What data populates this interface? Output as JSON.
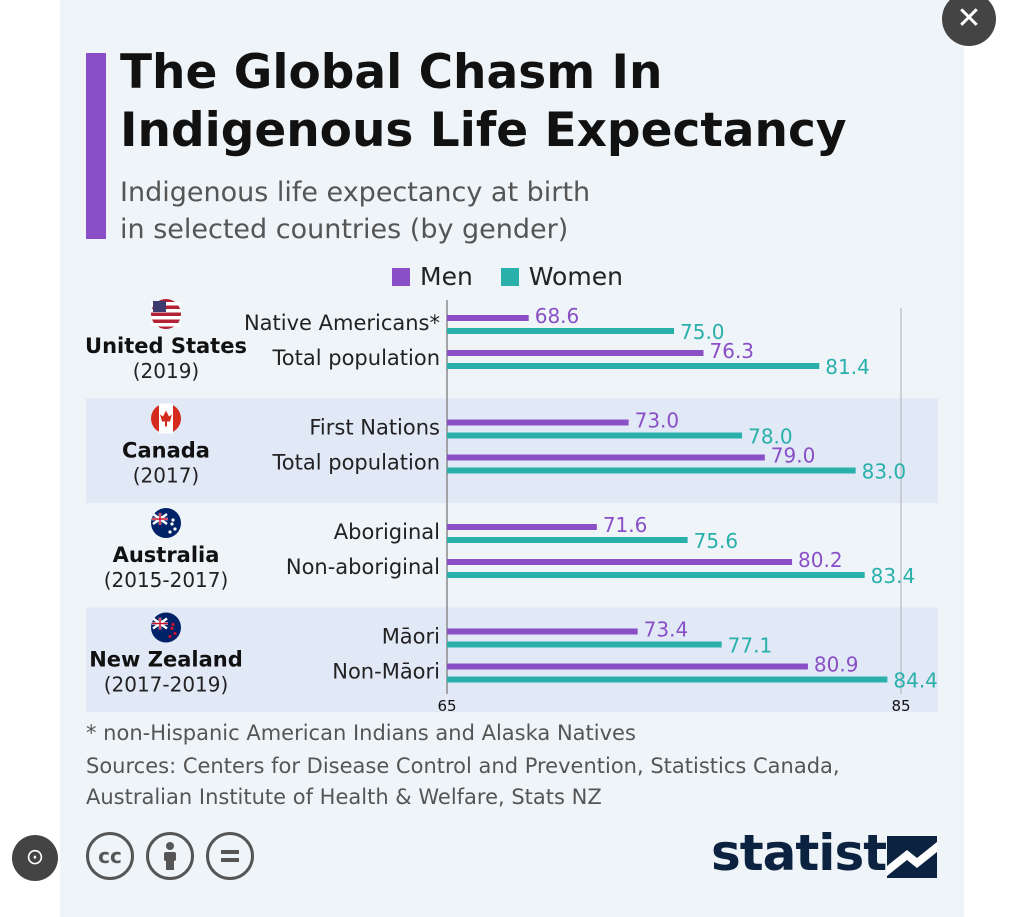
{
  "header": {
    "title_line1": "The Global Chasm In",
    "title_line2": "Indigenous Life Expectancy",
    "subtitle_line1": "Indigenous life expectancy at birth",
    "subtitle_line2": "in selected countries (by gender)"
  },
  "legend": {
    "men": "Men",
    "women": "Women"
  },
  "colors": {
    "men": "#8a4fc7",
    "women": "#2ab0ab",
    "band": "#e1e8f6",
    "accent": "#8a4fc7"
  },
  "chart_data": {
    "type": "bar",
    "orientation": "horizontal",
    "series": [
      {
        "name": "Men"
      },
      {
        "name": "Women"
      }
    ],
    "xlim": [
      65,
      85
    ],
    "xticks": [
      "65",
      "85"
    ],
    "groups": [
      {
        "country": "United States",
        "years": "(2019)",
        "flag": "us-flag-icon",
        "rows": [
          {
            "label": "Native Americans*",
            "men": 68.6,
            "women": 75.0,
            "men_label": "68.6",
            "women_label": "75.0"
          },
          {
            "label": "Total population",
            "men": 76.3,
            "women": 81.4,
            "men_label": "76.3",
            "women_label": "81.4"
          }
        ]
      },
      {
        "country": "Canada",
        "years": "(2017)",
        "flag": "canada-flag-icon",
        "rows": [
          {
            "label": "First Nations",
            "men": 73.0,
            "women": 78.0,
            "men_label": "73.0",
            "women_label": "78.0"
          },
          {
            "label": "Total population",
            "men": 79.0,
            "women": 83.0,
            "men_label": "79.0",
            "women_label": "83.0"
          }
        ]
      },
      {
        "country": "Australia",
        "years": "(2015-2017)",
        "flag": "australia-flag-icon",
        "rows": [
          {
            "label": "Aboriginal",
            "men": 71.6,
            "women": 75.6,
            "men_label": "71.6",
            "women_label": "75.6"
          },
          {
            "label": "Non-aboriginal",
            "men": 80.2,
            "women": 83.4,
            "men_label": "80.2",
            "women_label": "83.4"
          }
        ]
      },
      {
        "country": "New Zealand",
        "years": "(2017-2019)",
        "flag": "new-zealand-flag-icon",
        "rows": [
          {
            "label": "Māori",
            "men": 73.4,
            "women": 77.1,
            "men_label": "73.4",
            "women_label": "77.1"
          },
          {
            "label": "Non-Māori",
            "men": 80.9,
            "women": 84.4,
            "men_label": "80.9",
            "women_label": "84.4"
          }
        ]
      }
    ]
  },
  "footer": {
    "note": "* non-Hispanic American Indians and Alaska Natives",
    "sources_line1": "Sources: Centers for Disease Control and Prevention, Statistics Canada,",
    "sources_line2": "Australian Institute of Health & Welfare, Stats NZ",
    "cc_label": "cc",
    "brand": "statista"
  },
  "controls": {
    "close": "✕",
    "lens": "⊙"
  }
}
